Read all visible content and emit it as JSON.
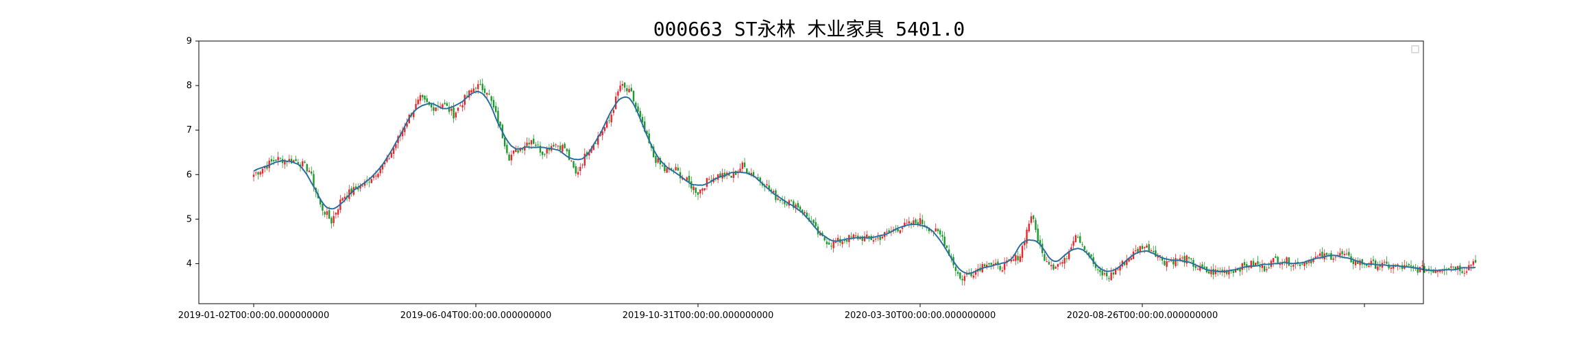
{
  "chart_data": {
    "type": "candlestick",
    "title": "000663 ST永林 木业家具 5401.0",
    "xlabel": "",
    "ylabel": "",
    "ylim": [
      3.1,
      9.0
    ],
    "y_ticks": [
      4,
      5,
      6,
      7,
      8,
      9
    ],
    "x_tick_labels": [
      "2019-01-02T00:00:00.000000000",
      "2019-06-04T00:00:00.000000000",
      "2019-10-31T00:00:00.000000000",
      "2020-03-30T00:00:00.000000000",
      "2020-08-26T00:00:00.000000000",
      ""
    ],
    "x_tick_index": [
      0,
      100,
      200,
      300,
      400,
      500
    ],
    "n_days": 500,
    "legend": {
      "placement": "top-right",
      "entries": []
    },
    "grid": false,
    "colors": {
      "up": "#e8262a",
      "down": "#1a9a2a",
      "trend": "#2a6f9e",
      "axis": "#000000"
    },
    "ohlc_anchors": [
      [
        0,
        6.0
      ],
      [
        10,
        6.35
      ],
      [
        20,
        6.3
      ],
      [
        25,
        6.1
      ],
      [
        30,
        5.3
      ],
      [
        35,
        4.95
      ],
      [
        40,
        5.5
      ],
      [
        50,
        5.8
      ],
      [
        60,
        6.3
      ],
      [
        70,
        7.3
      ],
      [
        75,
        7.7
      ],
      [
        80,
        7.5
      ],
      [
        85,
        7.6
      ],
      [
        90,
        7.35
      ],
      [
        95,
        7.7
      ],
      [
        100,
        8.0
      ],
      [
        105,
        7.9
      ],
      [
        110,
        7.2
      ],
      [
        115,
        6.4
      ],
      [
        120,
        6.6
      ],
      [
        125,
        6.8
      ],
      [
        130,
        6.5
      ],
      [
        135,
        6.7
      ],
      [
        140,
        6.6
      ],
      [
        145,
        6.0
      ],
      [
        150,
        6.5
      ],
      [
        160,
        7.2
      ],
      [
        165,
        8.0
      ],
      [
        170,
        7.8
      ],
      [
        175,
        7.1
      ],
      [
        180,
        6.4
      ],
      [
        185,
        6.1
      ],
      [
        190,
        6.1
      ],
      [
        200,
        5.6
      ],
      [
        205,
        5.9
      ],
      [
        210,
        6.0
      ],
      [
        215,
        5.95
      ],
      [
        220,
        6.2
      ],
      [
        230,
        5.8
      ],
      [
        235,
        5.5
      ],
      [
        245,
        5.3
      ],
      [
        250,
        5.0
      ],
      [
        255,
        4.6
      ],
      [
        260,
        4.45
      ],
      [
        270,
        4.6
      ],
      [
        280,
        4.55
      ],
      [
        290,
        4.8
      ],
      [
        300,
        4.95
      ],
      [
        310,
        4.6
      ],
      [
        315,
        4.0
      ],
      [
        318,
        3.65
      ],
      [
        325,
        3.85
      ],
      [
        330,
        4.05
      ],
      [
        335,
        3.9
      ],
      [
        340,
        4.0
      ],
      [
        345,
        4.2
      ],
      [
        350,
        5.1
      ],
      [
        355,
        4.2
      ],
      [
        360,
        3.95
      ],
      [
        365,
        4.05
      ],
      [
        370,
        4.7
      ],
      [
        375,
        4.3
      ],
      [
        380,
        3.8
      ],
      [
        385,
        3.7
      ],
      [
        390,
        3.95
      ],
      [
        400,
        4.4
      ],
      [
        405,
        4.3
      ],
      [
        410,
        4.05
      ],
      [
        420,
        4.1
      ],
      [
        425,
        3.9
      ],
      [
        430,
        3.8
      ],
      [
        440,
        3.85
      ],
      [
        450,
        4.0
      ],
      [
        455,
        3.9
      ],
      [
        460,
        4.1
      ],
      [
        465,
        4.05
      ],
      [
        470,
        4.0
      ],
      [
        480,
        4.15
      ],
      [
        490,
        4.2
      ],
      [
        495,
        4.05
      ],
      [
        500,
        4.0
      ],
      [
        510,
        3.95
      ],
      [
        520,
        3.9
      ],
      [
        530,
        3.85
      ],
      [
        540,
        3.95
      ],
      [
        545,
        3.85
      ],
      [
        550,
        4.1
      ]
    ]
  }
}
